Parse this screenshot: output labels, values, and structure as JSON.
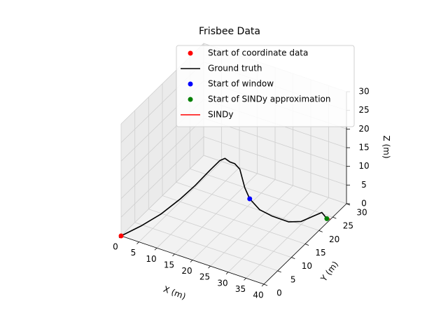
{
  "chart_data": {
    "type": "line",
    "projection": "3d",
    "title": "Frisbee Data",
    "xlabel": "X (m)",
    "ylabel": "Y (m)",
    "zlabel": "Z (m)",
    "xlim": [
      0,
      40
    ],
    "ylim": [
      0,
      30
    ],
    "zlim": [
      0,
      30
    ],
    "xticks": [
      0,
      5,
      10,
      15,
      20,
      25,
      30,
      35,
      40
    ],
    "yticks": [
      0,
      5,
      10,
      15,
      20,
      25,
      30
    ],
    "zticks": [
      0,
      5,
      10,
      15,
      20,
      25,
      30
    ],
    "grid": true,
    "legend_position": "top-right",
    "series": [
      {
        "name": "Ground truth",
        "kind": "line",
        "color": "#000000",
        "points": [
          [
            0,
            0,
            0
          ],
          [
            4,
            2,
            2.5
          ],
          [
            8,
            4,
            5.5
          ],
          [
            12,
            6,
            9.5
          ],
          [
            15,
            7.5,
            13
          ],
          [
            18,
            9,
            17
          ],
          [
            20,
            10,
            19.5
          ],
          [
            21,
            10.5,
            20
          ],
          [
            22,
            11,
            19
          ],
          [
            23,
            11.5,
            18.5
          ],
          [
            24,
            12,
            17
          ],
          [
            25,
            12.5,
            12
          ],
          [
            26,
            13,
            9
          ],
          [
            28,
            14,
            6
          ],
          [
            30,
            16,
            3.5
          ],
          [
            33,
            18,
            1.5
          ],
          [
            35,
            20,
            0.8
          ],
          [
            37,
            22,
            1.5
          ],
          [
            38.5,
            23,
            2.2
          ],
          [
            39.5,
            23.5,
            0.5
          ]
        ]
      },
      {
        "name": "SINDy",
        "kind": "line",
        "color": "#ff0000",
        "points": [
          [
            39.5,
            23.5,
            0.5
          ],
          [
            40,
            24,
            0.2
          ]
        ]
      },
      {
        "name": "Start of coordinate data",
        "kind": "point",
        "color": "#ff0000",
        "points": [
          [
            0,
            0,
            0
          ]
        ]
      },
      {
        "name": "Start of window",
        "kind": "point",
        "color": "#0000ff",
        "points": [
          [
            26,
            13,
            9
          ]
        ]
      },
      {
        "name": "Start of SINDy approximation",
        "kind": "point",
        "color": "#008000",
        "points": [
          [
            39.5,
            23.5,
            0.5
          ]
        ]
      }
    ],
    "legend": [
      {
        "label": "Start of coordinate data",
        "kind": "point",
        "color": "#ff0000"
      },
      {
        "label": "Ground truth",
        "kind": "line",
        "color": "#000000"
      },
      {
        "label": "Start of window",
        "kind": "point",
        "color": "#0000ff"
      },
      {
        "label": "Start of SINDy approximation",
        "kind": "point",
        "color": "#008000"
      },
      {
        "label": "SINDy",
        "kind": "line",
        "color": "#ff0000"
      }
    ]
  }
}
